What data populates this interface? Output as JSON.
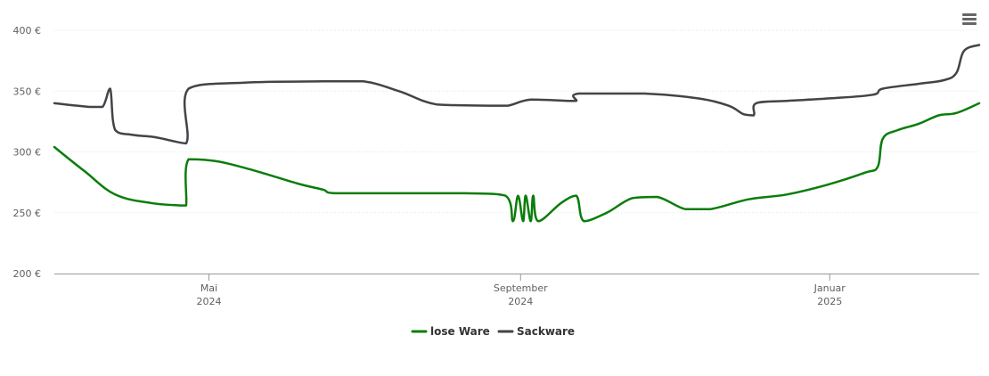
{
  "menu": {
    "icon": "hamburger-menu-icon"
  },
  "chart_data": {
    "type": "line",
    "title": "",
    "xlabel": "",
    "ylabel": "",
    "ylim": [
      200,
      400
    ],
    "xlim": [
      "2024-03-01",
      "2025-03-01"
    ],
    "y_ticks": [
      {
        "value": 200,
        "label": "200 €"
      },
      {
        "value": 250,
        "label": "250 €"
      },
      {
        "value": 300,
        "label": "300 €"
      },
      {
        "value": 350,
        "label": "350 €"
      },
      {
        "value": 400,
        "label": "400 €"
      }
    ],
    "x_ticks": [
      {
        "date": "2024-05-01",
        "month": "Mai",
        "year": "2024"
      },
      {
        "date": "2024-09-01",
        "month": "September",
        "year": "2024"
      },
      {
        "date": "2025-01-01",
        "month": "Januar",
        "year": "2025"
      }
    ],
    "grid": true,
    "legend_position": "bottom-center",
    "series": [
      {
        "name": "lose Ware",
        "color": "#0a7d0a",
        "points": [
          [
            "2024-03-01",
            304
          ],
          [
            "2024-03-13",
            284
          ],
          [
            "2024-03-25",
            265
          ],
          [
            "2024-04-08",
            258
          ],
          [
            "2024-04-20",
            256
          ],
          [
            "2024-04-22",
            256
          ],
          [
            "2024-04-23",
            294
          ],
          [
            "2024-05-05",
            292
          ],
          [
            "2024-05-20",
            284
          ],
          [
            "2024-06-05",
            274
          ],
          [
            "2024-06-15",
            269
          ],
          [
            "2024-06-20",
            266
          ],
          [
            "2024-07-15",
            266
          ],
          [
            "2024-08-10",
            266
          ],
          [
            "2024-08-26",
            264
          ],
          [
            "2024-08-29",
            243
          ],
          [
            "2024-08-31",
            264
          ],
          [
            "2024-09-02",
            243
          ],
          [
            "2024-09-03",
            264
          ],
          [
            "2024-09-05",
            243
          ],
          [
            "2024-09-06",
            264
          ],
          [
            "2024-09-08",
            243
          ],
          [
            "2024-09-17",
            258
          ],
          [
            "2024-09-23",
            264
          ],
          [
            "2024-09-26",
            243
          ],
          [
            "2024-10-05",
            250
          ],
          [
            "2024-10-15",
            262
          ],
          [
            "2024-10-25",
            263
          ],
          [
            "2024-11-05",
            253
          ],
          [
            "2024-11-15",
            253
          ],
          [
            "2024-11-30",
            261
          ],
          [
            "2024-12-15",
            265
          ],
          [
            "2024-12-31",
            273
          ],
          [
            "2025-01-15",
            283
          ],
          [
            "2025-01-20",
            288
          ],
          [
            "2025-01-22",
            311
          ],
          [
            "2025-01-28",
            318
          ],
          [
            "2025-02-05",
            323
          ],
          [
            "2025-02-13",
            330
          ],
          [
            "2025-02-20",
            332
          ],
          [
            "2025-03-01",
            340
          ]
        ]
      },
      {
        "name": "Sackware",
        "color": "#434348",
        "points": [
          [
            "2024-03-01",
            340
          ],
          [
            "2024-03-15",
            337
          ],
          [
            "2024-03-20",
            337
          ],
          [
            "2024-03-23",
            352
          ],
          [
            "2024-03-25",
            318
          ],
          [
            "2024-04-01",
            314
          ],
          [
            "2024-04-10",
            312
          ],
          [
            "2024-04-22",
            307
          ],
          [
            "2024-04-23",
            352
          ],
          [
            "2024-05-15",
            357
          ],
          [
            "2024-06-15",
            358
          ],
          [
            "2024-07-01",
            358
          ],
          [
            "2024-07-15",
            350
          ],
          [
            "2024-07-30",
            339
          ],
          [
            "2024-08-20",
            338
          ],
          [
            "2024-08-27",
            338
          ],
          [
            "2024-09-05",
            343
          ],
          [
            "2024-09-20",
            342
          ],
          [
            "2024-09-23",
            342
          ],
          [
            "2024-09-24",
            348
          ],
          [
            "2024-10-20",
            348
          ],
          [
            "2024-11-10",
            344
          ],
          [
            "2024-11-22",
            338
          ],
          [
            "2024-11-28",
            331
          ],
          [
            "2024-12-02",
            330
          ],
          [
            "2024-12-03",
            340
          ],
          [
            "2024-12-15",
            342
          ],
          [
            "2025-01-01",
            344
          ],
          [
            "2025-01-18",
            347
          ],
          [
            "2025-01-22",
            352
          ],
          [
            "2025-02-05",
            356
          ],
          [
            "2025-02-15",
            359
          ],
          [
            "2025-02-20",
            365
          ],
          [
            "2025-02-23",
            383
          ],
          [
            "2025-03-01",
            388
          ]
        ]
      }
    ]
  }
}
